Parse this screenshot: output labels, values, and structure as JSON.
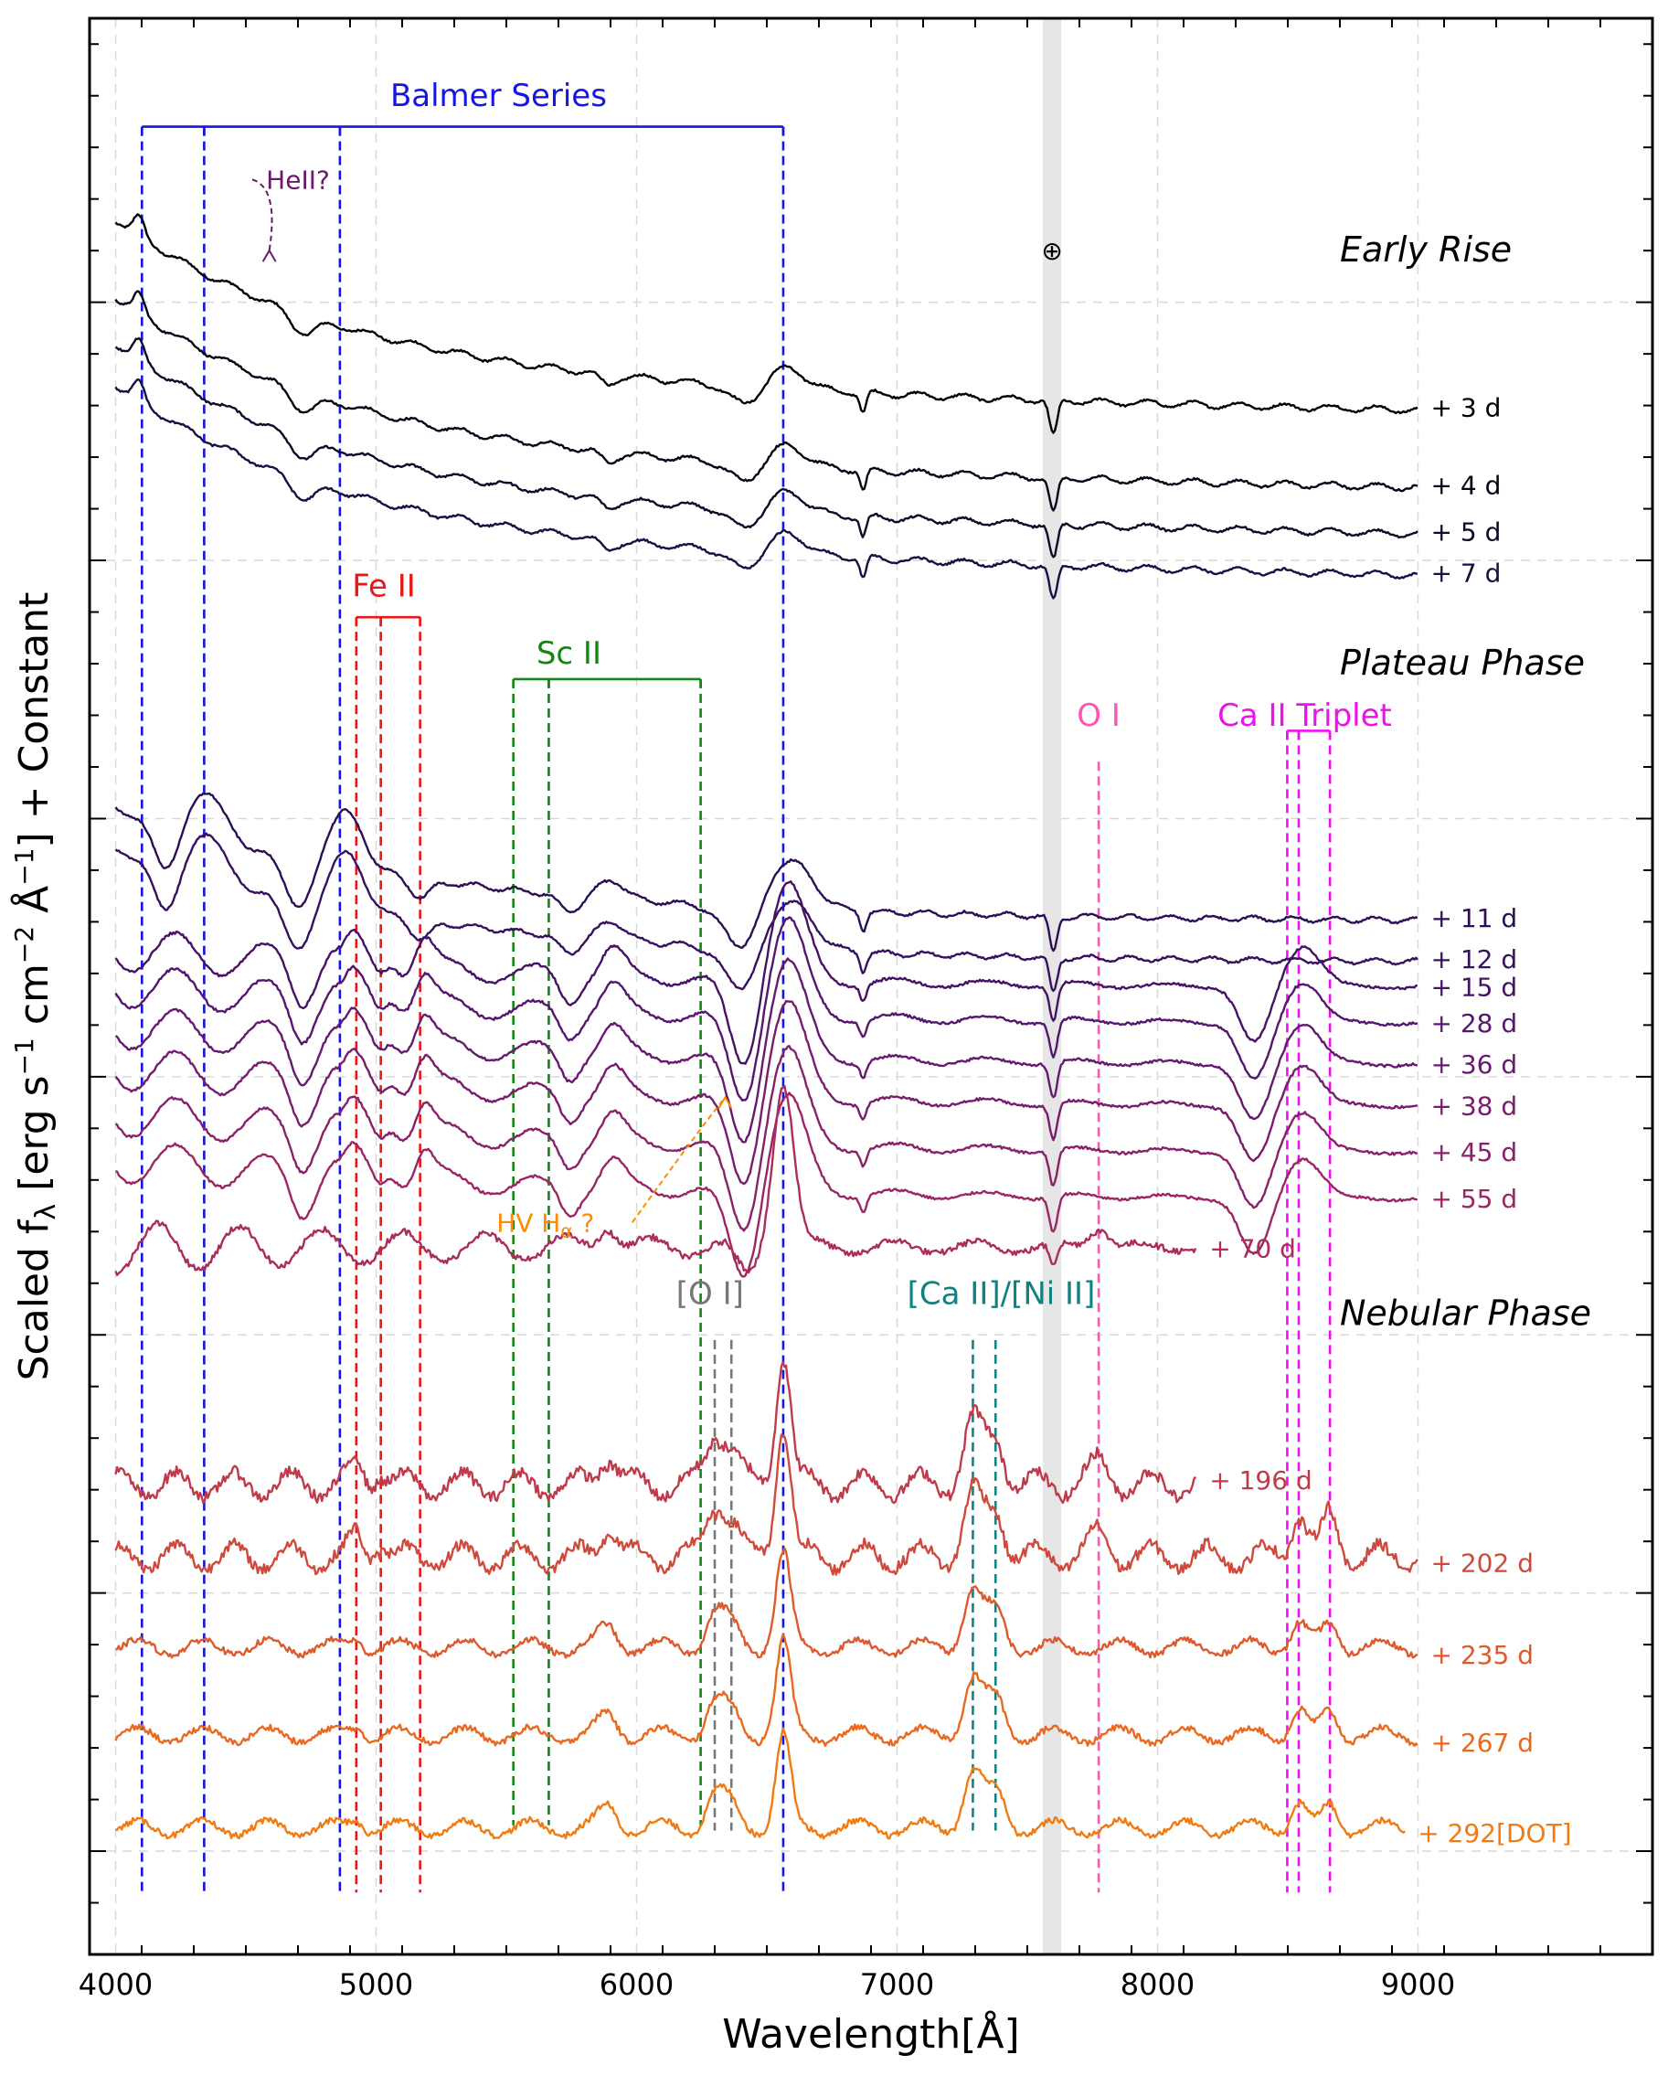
{
  "chart_data": {
    "type": "line",
    "xlabel": "Wavelength[Å]",
    "ylabel_parts": {
      "main": "Scaled f",
      "sub": "λ",
      "open": " [erg s",
      "sup1": "−1",
      "mid1": " cm",
      "sup2": "−2",
      "mid2": " Å",
      "sup3": "−1",
      "close": "] + Constant"
    },
    "xlim": [
      3900,
      9900
    ],
    "ylim": [
      0,
      37.5
    ],
    "x_ticks": [
      4000,
      5000,
      6000,
      7000,
      8000,
      9000
    ],
    "x_tick_labels": [
      "4000",
      "5000",
      "6000",
      "7000",
      "8000",
      "9000"
    ],
    "y_major_ticks": [
      2,
      7,
      12,
      17,
      22,
      27,
      32
    ],
    "grid": true,
    "telluric_band": {
      "x0": 7560,
      "x1": 7630,
      "symbol": "⊕",
      "symbol_y": 33
    },
    "phase_labels": [
      {
        "text": "Early Rise",
        "x": 8700,
        "y": 33
      },
      {
        "text": "Plateau Phase",
        "x": 8700,
        "y": 25
      },
      {
        "text": "Nebular Phase",
        "x": 8700,
        "y": 12.4
      }
    ],
    "line_ids": [
      {
        "label": "Balmer Series",
        "color": "#1515e6",
        "x": [
          4101,
          4340,
          4861,
          6563
        ],
        "bar_y": 35.4,
        "label_x": 5470,
        "label_y": 35.8,
        "y_bottom": 1.2
      },
      {
        "label": "Fe II",
        "color": "#e81818",
        "x": [
          4924,
          5018,
          5169
        ],
        "bar_y": 25.9,
        "label_x": 5030,
        "label_y": 26.3,
        "y_bottom": 1.2
      },
      {
        "label": "Sc II",
        "color": "#118811",
        "x": [
          5527,
          5663,
          6246
        ],
        "bar_y": 24.7,
        "label_x": 5740,
        "label_y": 25.0,
        "y_bottom": 2.5
      },
      {
        "label": "O I",
        "color": "#ff55b0",
        "x": [
          7774
        ],
        "bar_y": null,
        "label_x": 7774,
        "label_y": 23.8,
        "y_bottom": 1.2
      },
      {
        "label": "Ca II Triplet",
        "color": "#ee11ee",
        "x": [
          8498,
          8542,
          8662
        ],
        "bar_y": 23.7,
        "label_x": 8565,
        "label_y": 23.8,
        "y_bottom": 1.2
      },
      {
        "label": "[O I]",
        "color": "#777777",
        "x": [
          6300,
          6364
        ],
        "bar_y": null,
        "label_x": 6282,
        "label_y": 12.6,
        "y_bottom": 2.4
      },
      {
        "label": "[Ca II]/[Ni II]",
        "color": "#118080",
        "x": [
          7291,
          7378
        ],
        "bar_y": null,
        "label_x": 7400,
        "label_y": 12.6,
        "y_bottom": 2.4
      }
    ],
    "annotations": [
      {
        "text": "HeII?",
        "color": "#6a1a6a",
        "x": 4700,
        "y": 34.2,
        "arrow_to_x": 4590,
        "arrow_to_y": 33.0
      },
      {
        "text_main": "HV H",
        "text_sub": "α",
        "text_tail": " ?",
        "color": "#ff8c00",
        "x": 5650,
        "y": 14.0,
        "arrow_to_x": 6340,
        "arrow_to_y": 16.6
      }
    ],
    "series": [
      {
        "epoch": "+ 3 d",
        "color": "#000004",
        "offset": 30.0,
        "xmax": 9000,
        "label_dy": 0,
        "template": "early"
      },
      {
        "epoch": "+ 4 d",
        "color": "#060415",
        "offset": 28.5,
        "xmax": 9000,
        "label_dy": 0,
        "template": "early"
      },
      {
        "epoch": "+ 5 d",
        "color": "#0e0a2a",
        "offset": 27.6,
        "xmax": 9000,
        "label_dy": 0,
        "template": "early"
      },
      {
        "epoch": "+ 7 d",
        "color": "#1a0f42",
        "offset": 26.8,
        "xmax": 9000,
        "label_dy": 0,
        "template": "early"
      },
      {
        "epoch": "+ 11 d",
        "color": "#2b0f54",
        "offset": 19.8,
        "xmax": 9000,
        "label_dy": 0,
        "template": "plateau_early"
      },
      {
        "epoch": "+ 12 d",
        "color": "#37105e",
        "offset": 19.0,
        "xmax": 9000,
        "label_dy": 0,
        "template": "plateau_early"
      },
      {
        "epoch": "+ 15 d",
        "color": "#461266",
        "offset": 18.1,
        "xmax": 9000,
        "label_dy": 0,
        "template": "plateau"
      },
      {
        "epoch": "+ 28 d",
        "color": "#56166e",
        "offset": 17.4,
        "xmax": 9000,
        "label_dy": 0,
        "template": "plateau"
      },
      {
        "epoch": "+ 36 d",
        "color": "#661a6f",
        "offset": 16.6,
        "xmax": 9000,
        "label_dy": 0,
        "template": "plateau"
      },
      {
        "epoch": "+ 38 d",
        "color": "#771d6c",
        "offset": 15.8,
        "xmax": 9000,
        "label_dy": 0,
        "template": "plateau"
      },
      {
        "epoch": "+ 45 d",
        "color": "#88216a",
        "offset": 14.9,
        "xmax": 9000,
        "label_dy": 0,
        "template": "plateau"
      },
      {
        "epoch": "+ 55 d",
        "color": "#9a2663",
        "offset": 14.0,
        "xmax": 9000,
        "label_dy": 0,
        "template": "plateau"
      },
      {
        "epoch": "+ 70 d",
        "color": "#ab2c5d",
        "offset": 13.2,
        "xmax": 8150,
        "label_dy": 0,
        "template": "plateau_late"
      },
      {
        "epoch": "+ 196 d",
        "color": "#bf3a4a",
        "offset": 8.6,
        "xmax": 8150,
        "label_dy": 0,
        "template": "nebular"
      },
      {
        "epoch": "+ 202 d",
        "color": "#cf4a3d",
        "offset": 7.2,
        "xmax": 9000,
        "label_dy": 0,
        "template": "nebular"
      },
      {
        "epoch": "+ 235 d",
        "color": "#dd5a2e",
        "offset": 5.6,
        "xmax": 9000,
        "label_dy": 0,
        "template": "nebular_smooth"
      },
      {
        "epoch": "+ 267 d",
        "color": "#e8691f",
        "offset": 3.9,
        "xmax": 9000,
        "label_dy": 0,
        "template": "nebular_smooth"
      },
      {
        "epoch": "+ 292[DOT]",
        "color": "#f07b12",
        "offset": 2.1,
        "xmax": 8950,
        "label_dy": 0,
        "template": "nebular_smooth"
      }
    ]
  }
}
